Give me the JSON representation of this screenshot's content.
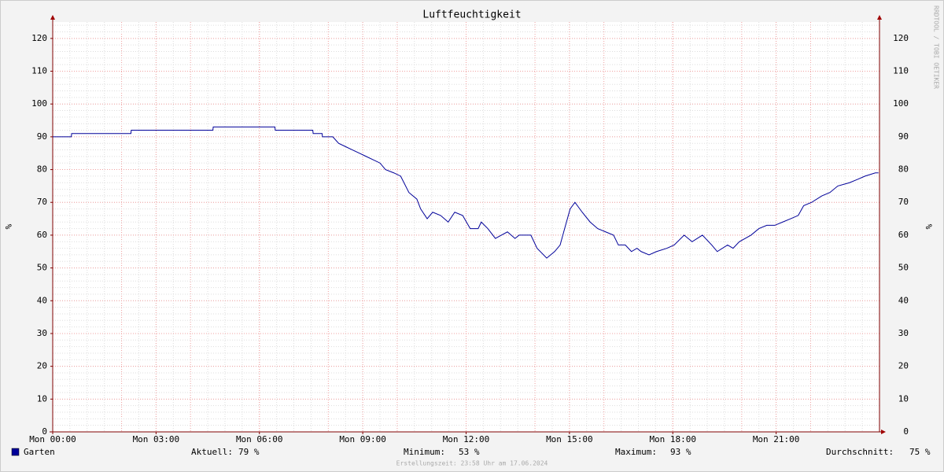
{
  "chart_data": {
    "type": "line",
    "title": "Luftfeuchtigkeit",
    "y_label": "%",
    "y2_label": "%",
    "watermark": "RRDTOOL / TOBI OETIKER",
    "footer": "Erstellungszeit: 23:58 Uhr am 17.06.2024",
    "ylim": [
      0,
      125
    ],
    "yticks": [
      0,
      10,
      20,
      30,
      40,
      50,
      60,
      70,
      80,
      90,
      100,
      110,
      120
    ],
    "xlim": [
      0,
      24
    ],
    "xticks": [
      {
        "value": 0,
        "label": "Mon 00:00"
      },
      {
        "value": 3,
        "label": "Mon 03:00"
      },
      {
        "value": 6,
        "label": "Mon 06:00"
      },
      {
        "value": 9,
        "label": "Mon 09:00"
      },
      {
        "value": 12,
        "label": "Mon 12:00"
      },
      {
        "value": 15,
        "label": "Mon 15:00"
      },
      {
        "value": 18,
        "label": "Mon 18:00"
      },
      {
        "value": 21,
        "label": "Mon 21:00"
      }
    ],
    "grid": true,
    "x": [
      0,
      0.54,
      0.55,
      2.27,
      2.28,
      4.65,
      4.66,
      6.45,
      6.46,
      7.55,
      7.56,
      7.82,
      7.83,
      8.13,
      8.3,
      8.5,
      8.7,
      8.9,
      9.1,
      9.3,
      9.5,
      9.66,
      9.9,
      10.1,
      10.34,
      10.57,
      10.68,
      10.87,
      11.03,
      11.26,
      11.48,
      11.67,
      11.9,
      12.12,
      12.35,
      12.44,
      12.63,
      12.85,
      13.2,
      13.42,
      13.54,
      13.88,
      14.06,
      14.34,
      14.57,
      14.73,
      14.86,
      15.02,
      15.16,
      15.37,
      15.6,
      15.82,
      16.05,
      16.28,
      16.42,
      16.62,
      16.8,
      16.96,
      17.08,
      17.31,
      17.53,
      17.83,
      18.04,
      18.33,
      18.56,
      18.86,
      19.13,
      19.29,
      19.59,
      19.75,
      19.93,
      20.27,
      20.5,
      20.73,
      20.96,
      21.19,
      21.42,
      21.64,
      21.8,
      22.03,
      22.33,
      22.56,
      22.79,
      23.13,
      23.36,
      23.58,
      23.88,
      23.97
    ],
    "series": [
      {
        "name": "Garten",
        "color": "#000099",
        "values": [
          90,
          90,
          91,
          91,
          92,
          92,
          93,
          93,
          92,
          92,
          91,
          91,
          90,
          90,
          88,
          87,
          86,
          85,
          84,
          83,
          82,
          80,
          79,
          78,
          73,
          71,
          68,
          65,
          67,
          66,
          64,
          67,
          66,
          62,
          62,
          64,
          62,
          59,
          61,
          59,
          60,
          60,
          56,
          53,
          55,
          57,
          62,
          68,
          70,
          67,
          64,
          62,
          61,
          60,
          57,
          57,
          55,
          56,
          55,
          54,
          55,
          56,
          57,
          60,
          58,
          60,
          57,
          55,
          57,
          56,
          58,
          60,
          62,
          63,
          63,
          64,
          65,
          66,
          69,
          70,
          72,
          73,
          75,
          76,
          77,
          78,
          79,
          79
        ]
      }
    ],
    "stats": [
      {
        "label": "Aktuell:",
        "text": "79 %"
      },
      {
        "label": "Minimum:",
        "text": "53 %"
      },
      {
        "label": "Maximum:",
        "text": "93 %"
      },
      {
        "label": "Durchschnitt:",
        "text": "75 %"
      }
    ]
  }
}
